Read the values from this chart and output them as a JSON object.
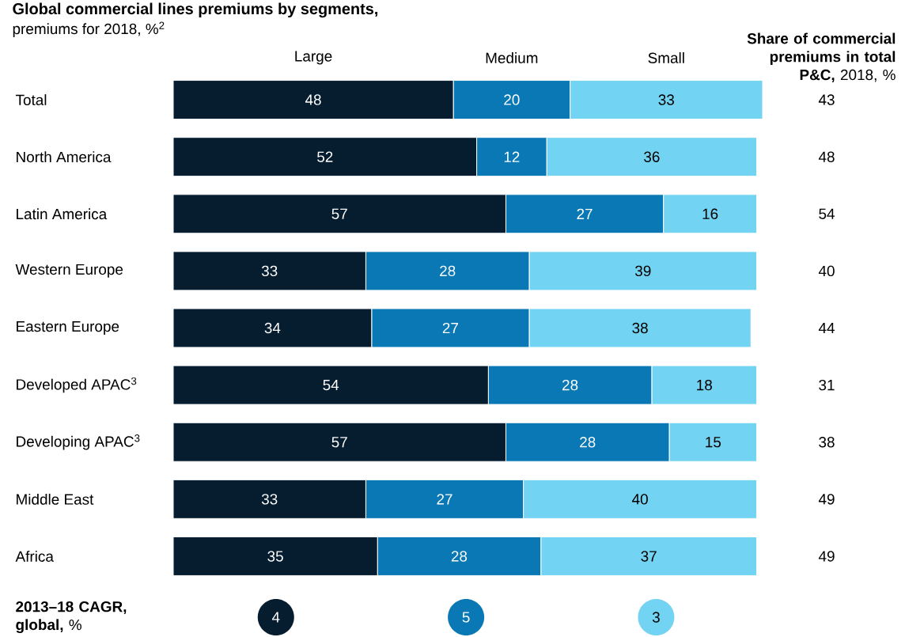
{
  "chart_data": [
    {
      "type": "bar",
      "orientation": "horizontal",
      "stacked": true,
      "title": "Global commercial lines premiums by segments,",
      "subtitle": "premiums for 2018, %$^{2}$",
      "categories": [
        "Total",
        "North America",
        "Latin America",
        "Western Europe",
        "Eastern Europe",
        "Developed APAC$^{3}$",
        "Developing APAC$^{3}$",
        "Middle East",
        "Africa"
      ],
      "series": [
        {
          "name": "Large",
          "color": "#061d30",
          "values": [
            48,
            52,
            57,
            33,
            34,
            54,
            57,
            33,
            35
          ]
        },
        {
          "name": "Medium",
          "color": "#0a78b4",
          "values": [
            20,
            12,
            27,
            28,
            27,
            28,
            28,
            27,
            28
          ]
        },
        {
          "name": "Small",
          "color": "#73d3f2",
          "values": [
            33,
            36,
            16,
            39,
            38,
            18,
            15,
            40,
            37
          ]
        }
      ],
      "data_labels": true,
      "legend": "top"
    },
    {
      "type": "other",
      "title": "**2013–18 CAGR, global,** %",
      "values": [
        4,
        5,
        3
      ],
      "colors": [
        "#061d30",
        "#0a78b4",
        "#73d3f2"
      ],
      "data_labels": true
    },
    {
      "type": "other",
      "title": "**Share of commercial premiums in total P&C,** 2018, %",
      "values": [
        43,
        48,
        54,
        40,
        44,
        31,
        38,
        49,
        49
      ],
      "data_labels": true
    }
  ]
}
